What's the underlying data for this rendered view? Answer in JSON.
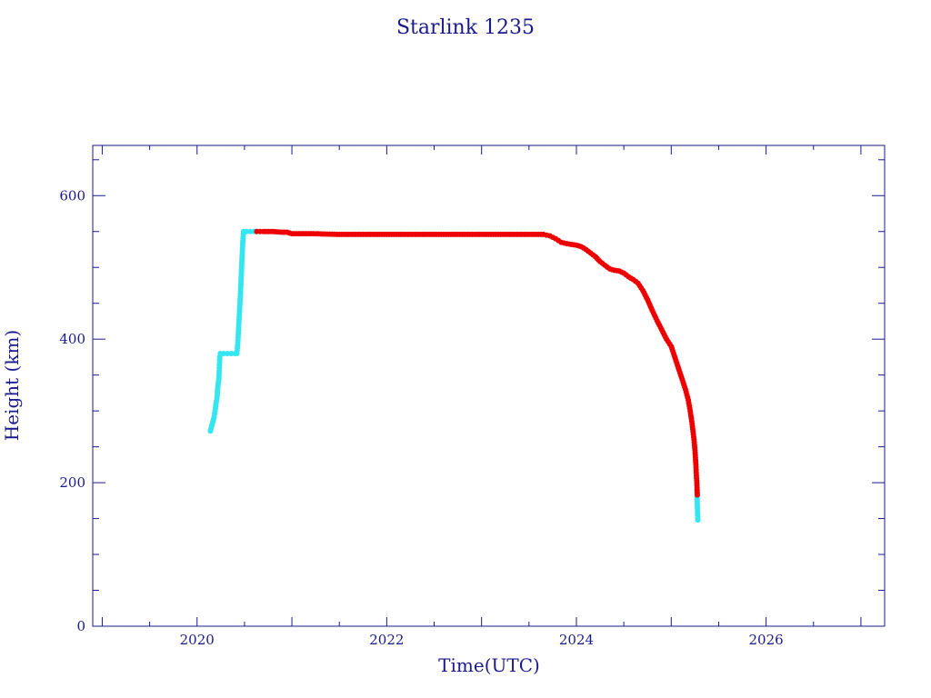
{
  "chart_data": {
    "type": "scatter",
    "title": "Starlink 1235",
    "xlabel": "Time(UTC)",
    "ylabel": "Height (km)",
    "xlim": [
      2018.9,
      2027.25
    ],
    "ylim": [
      0,
      670
    ],
    "x_ticks": [
      {
        "value": 2020,
        "label": "2020"
      },
      {
        "value": 2022,
        "label": "2022"
      },
      {
        "value": 2024,
        "label": "2024"
      },
      {
        "value": 2026,
        "label": "2026"
      }
    ],
    "y_ticks": [
      {
        "value": 0,
        "label": "0"
      },
      {
        "value": 200,
        "label": "200"
      },
      {
        "value": 400,
        "label": "400"
      },
      {
        "value": 600,
        "label": "600"
      }
    ],
    "grid": false,
    "colors": {
      "axis": "#1a1a8c",
      "series_cyan": "#33e6f0",
      "series_red": "#ee0000"
    },
    "series": [
      {
        "color": "#33e6f0",
        "points": [
          [
            2020.14,
            272
          ],
          [
            2020.16,
            282
          ],
          [
            2020.18,
            292
          ],
          [
            2020.19,
            300
          ],
          [
            2020.2,
            310
          ],
          [
            2020.21,
            318
          ],
          [
            2020.22,
            335
          ],
          [
            2020.23,
            345
          ],
          [
            2020.235,
            360
          ],
          [
            2020.24,
            375
          ],
          [
            2020.245,
            380
          ],
          [
            2020.28,
            380
          ],
          [
            2020.32,
            380
          ],
          [
            2020.36,
            380
          ],
          [
            2020.4,
            380
          ],
          [
            2020.42,
            380
          ],
          [
            2020.43,
            395
          ],
          [
            2020.44,
            420
          ],
          [
            2020.45,
            445
          ],
          [
            2020.46,
            470
          ],
          [
            2020.47,
            500
          ],
          [
            2020.48,
            530
          ],
          [
            2020.49,
            550
          ],
          [
            2020.52,
            550
          ],
          [
            2020.56,
            550
          ],
          [
            2020.6,
            550
          ],
          [
            2020.63,
            550
          ],
          [
            2025.27,
            190
          ],
          [
            2025.28,
            148
          ]
        ]
      },
      {
        "color": "#ee0000",
        "points": [
          [
            2020.63,
            550
          ],
          [
            2020.7,
            550
          ],
          [
            2020.8,
            550
          ],
          [
            2020.9,
            549
          ],
          [
            2020.95,
            549
          ],
          [
            2021.0,
            547
          ],
          [
            2021.2,
            547
          ],
          [
            2021.5,
            546
          ],
          [
            2021.8,
            546
          ],
          [
            2022.0,
            546
          ],
          [
            2022.3,
            546
          ],
          [
            2022.6,
            546
          ],
          [
            2022.9,
            546
          ],
          [
            2023.2,
            546
          ],
          [
            2023.5,
            546
          ],
          [
            2023.65,
            546
          ],
          [
            2023.72,
            544
          ],
          [
            2023.78,
            540
          ],
          [
            2023.84,
            535
          ],
          [
            2023.9,
            533
          ],
          [
            2023.95,
            532
          ],
          [
            2024.0,
            531
          ],
          [
            2024.05,
            529
          ],
          [
            2024.1,
            525
          ],
          [
            2024.15,
            520
          ],
          [
            2024.2,
            515
          ],
          [
            2024.25,
            508
          ],
          [
            2024.3,
            503
          ],
          [
            2024.35,
            498
          ],
          [
            2024.4,
            496
          ],
          [
            2024.45,
            495
          ],
          [
            2024.5,
            492
          ],
          [
            2024.55,
            487
          ],
          [
            2024.6,
            483
          ],
          [
            2024.65,
            478
          ],
          [
            2024.7,
            468
          ],
          [
            2024.75,
            455
          ],
          [
            2024.8,
            440
          ],
          [
            2024.85,
            426
          ],
          [
            2024.9,
            413
          ],
          [
            2024.95,
            400
          ],
          [
            2025.0,
            390
          ],
          [
            2025.05,
            370
          ],
          [
            2025.1,
            350
          ],
          [
            2025.15,
            330
          ],
          [
            2025.18,
            315
          ],
          [
            2025.2,
            300
          ],
          [
            2025.22,
            282
          ],
          [
            2025.24,
            260
          ],
          [
            2025.25,
            245
          ],
          [
            2025.26,
            225
          ],
          [
            2025.265,
            210
          ],
          [
            2025.27,
            200
          ],
          [
            2025.275,
            183
          ]
        ]
      }
    ]
  }
}
